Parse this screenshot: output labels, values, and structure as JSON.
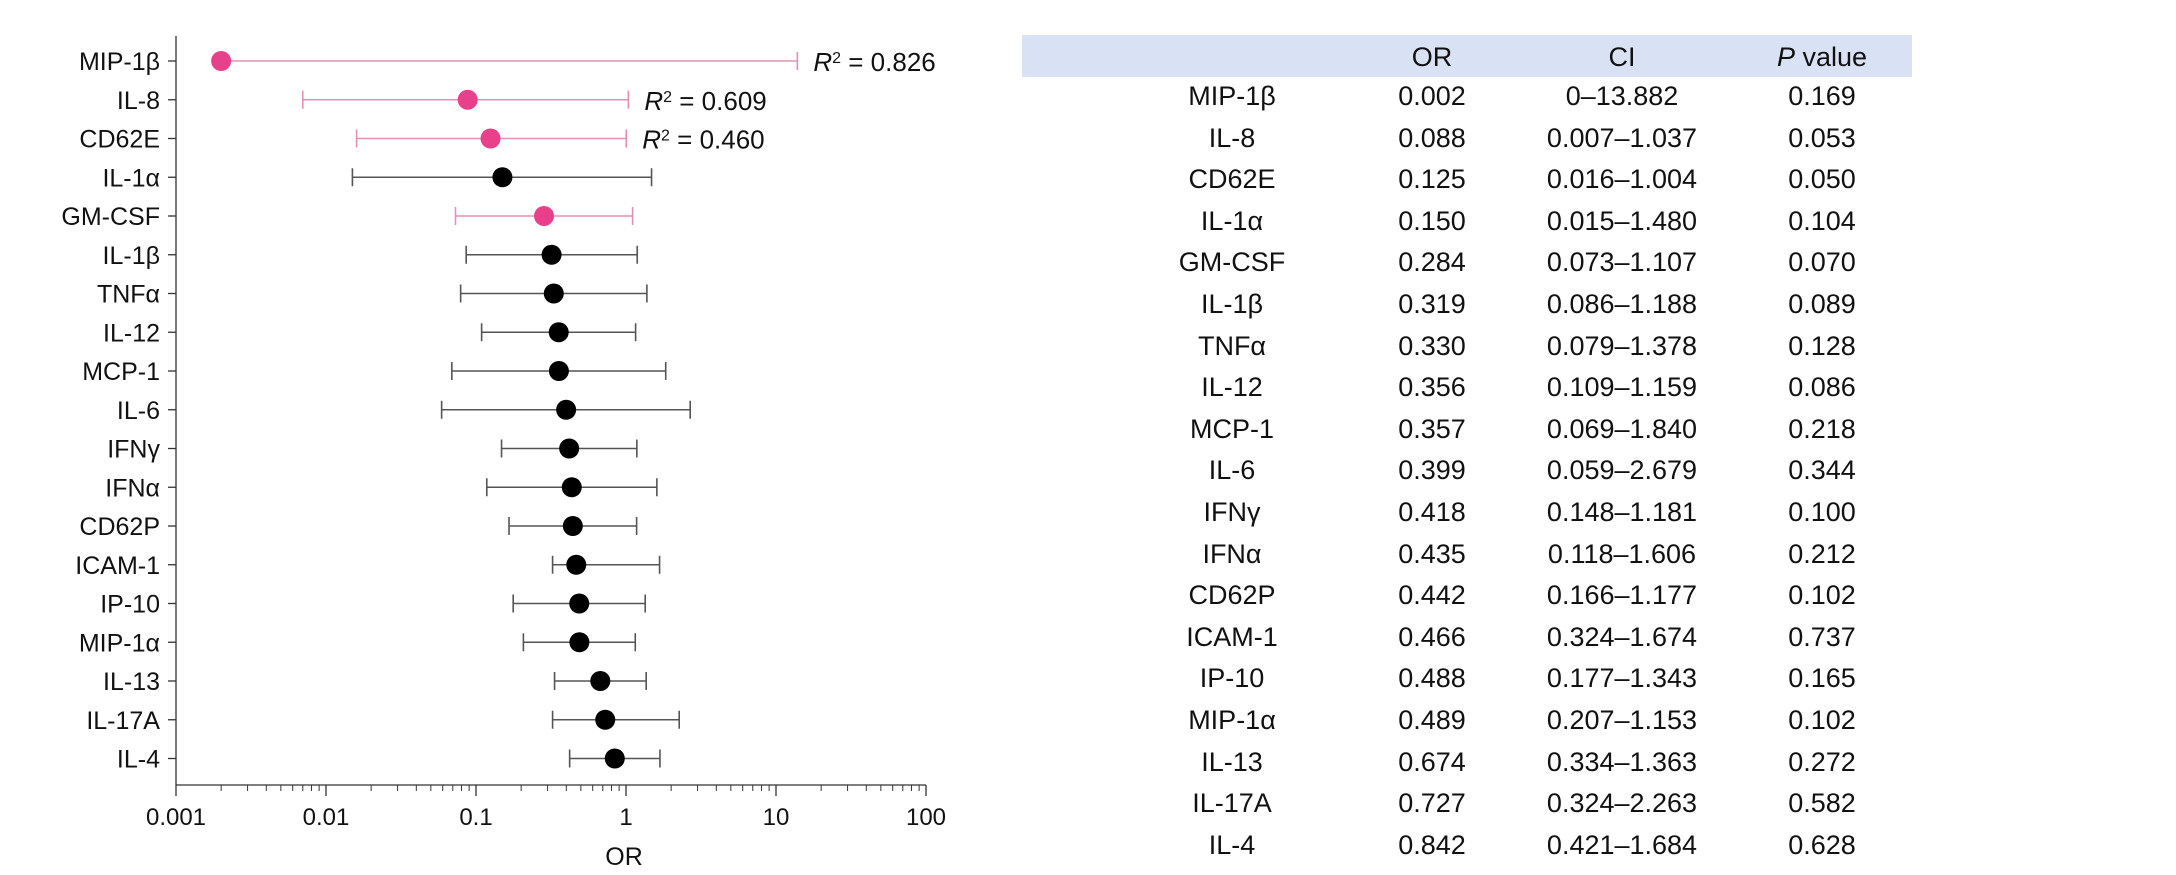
{
  "chart_data": {
    "type": "forest",
    "xlabel": "OR",
    "xscale": "log",
    "xlim": [
      0.001,
      100
    ],
    "xticks": [
      {
        "value": 0.001,
        "label": "0.001"
      },
      {
        "value": 0.01,
        "label": "0.01"
      },
      {
        "value": 0.1,
        "label": "0.1"
      },
      {
        "value": 1,
        "label": "1"
      },
      {
        "value": 10,
        "label": "10"
      },
      {
        "value": 100,
        "label": "100"
      }
    ],
    "colors": {
      "highlight": "#e8408a",
      "default": "#000000",
      "highlight_line": "#e58fb7",
      "default_line": "#555555"
    },
    "r2_label_prefix": "R",
    "r2_label_sup": "2",
    "rows": [
      {
        "name": "MIP-1β",
        "or": 0.002,
        "lo": 0.00201,
        "hi": 13.882,
        "ci": "0–13.882",
        "p": "0.169",
        "highlight": true,
        "r2": " = 0.826"
      },
      {
        "name": "IL-8",
        "or": 0.088,
        "lo": 0.007,
        "hi": 1.037,
        "ci": "0.007–1.037",
        "p": "0.053",
        "highlight": true,
        "r2": " = 0.609"
      },
      {
        "name": "CD62E",
        "or": 0.125,
        "lo": 0.016,
        "hi": 1.004,
        "ci": "0.016–1.004",
        "p": "0.050",
        "highlight": true,
        "r2": " = 0.460"
      },
      {
        "name": "IL-1α",
        "or": 0.15,
        "lo": 0.015,
        "hi": 1.48,
        "ci": "0.015–1.480",
        "p": "0.104",
        "highlight": false
      },
      {
        "name": "GM-CSF",
        "or": 0.284,
        "lo": 0.073,
        "hi": 1.107,
        "ci": "0.073–1.107",
        "p": "0.070",
        "highlight": true
      },
      {
        "name": "IL-1β",
        "or": 0.319,
        "lo": 0.086,
        "hi": 1.188,
        "ci": "0.086–1.188",
        "p": "0.089",
        "highlight": false
      },
      {
        "name": "TNFα",
        "or": 0.33,
        "lo": 0.079,
        "hi": 1.378,
        "ci": "0.079–1.378",
        "p": "0.128",
        "highlight": false
      },
      {
        "name": "IL-12",
        "or": 0.356,
        "lo": 0.109,
        "hi": 1.159,
        "ci": "0.109–1.159",
        "p": "0.086",
        "highlight": false
      },
      {
        "name": "MCP-1",
        "or": 0.357,
        "lo": 0.069,
        "hi": 1.84,
        "ci": "0.069–1.840",
        "p": "0.218",
        "highlight": false
      },
      {
        "name": "IL-6",
        "or": 0.399,
        "lo": 0.059,
        "hi": 2.679,
        "ci": "0.059–2.679",
        "p": "0.344",
        "highlight": false
      },
      {
        "name": "IFNγ",
        "or": 0.418,
        "lo": 0.148,
        "hi": 1.181,
        "ci": "0.148–1.181",
        "p": "0.100",
        "highlight": false
      },
      {
        "name": "IFNα",
        "or": 0.435,
        "lo": 0.118,
        "hi": 1.606,
        "ci": "0.118–1.606",
        "p": "0.212",
        "highlight": false
      },
      {
        "name": "CD62P",
        "or": 0.442,
        "lo": 0.166,
        "hi": 1.177,
        "ci": "0.166–1.177",
        "p": "0.102",
        "highlight": false
      },
      {
        "name": "ICAM-1",
        "or": 0.466,
        "lo": 0.324,
        "hi": 1.674,
        "ci": "0.324–1.674",
        "p": "0.737",
        "highlight": false
      },
      {
        "name": "IP-10",
        "or": 0.488,
        "lo": 0.177,
        "hi": 1.343,
        "ci": "0.177–1.343",
        "p": "0.165",
        "highlight": false
      },
      {
        "name": "MIP-1α",
        "or": 0.489,
        "lo": 0.207,
        "hi": 1.153,
        "ci": "0.207–1.153",
        "p": "0.102",
        "highlight": false
      },
      {
        "name": "IL-13",
        "or": 0.674,
        "lo": 0.334,
        "hi": 1.363,
        "ci": "0.334–1.363",
        "p": "0.272",
        "highlight": false
      },
      {
        "name": "IL-17A",
        "or": 0.727,
        "lo": 0.324,
        "hi": 2.263,
        "ci": "0.324–2.263",
        "p": "0.582",
        "highlight": false
      },
      {
        "name": "IL-4",
        "or": 0.842,
        "lo": 0.421,
        "hi": 1.684,
        "ci": "0.421–1.684",
        "p": "0.628",
        "highlight": false
      }
    ]
  },
  "table": {
    "headers": {
      "name": "",
      "or": "OR",
      "ci": "CI",
      "p_italic": "P",
      "p_rest": " value"
    }
  }
}
